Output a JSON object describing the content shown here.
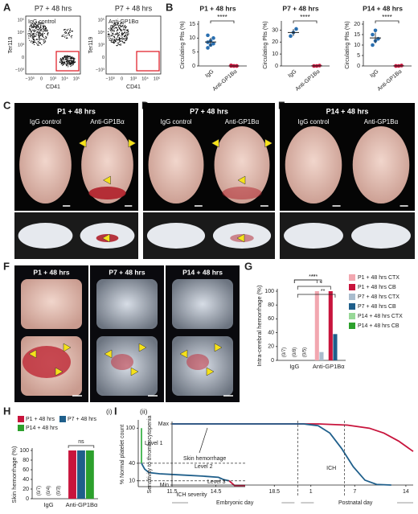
{
  "panel_labels": [
    "A",
    "B",
    "C",
    "D",
    "E",
    "F",
    "G",
    "H",
    "I"
  ],
  "panel_a": {
    "plots": [
      {
        "title": "P7 + 48 hrs",
        "label": "IgG control"
      },
      {
        "title": "P7 + 48 hrs",
        "label": "Anti-GP1Bα"
      }
    ],
    "xlabel": "CD41",
    "ylabel": "Ter119",
    "xticks": [
      "−10³",
      "0",
      "10³",
      "10⁴",
      "10⁵"
    ],
    "yticks": [
      "−10³",
      "0",
      "10³",
      "10⁴",
      "10⁵"
    ]
  },
  "panel_c": {
    "title": "P1 + 48 hrs",
    "labels": [
      "IgG control",
      "Anti-GP1Bα"
    ]
  },
  "panel_d": {
    "title": "P7 + 48 hrs",
    "labels": [
      "IgG control",
      "Anti-GP1Bα"
    ]
  },
  "panel_e": {
    "title": "P14 + 48 hrs",
    "labels": [
      "IgG control",
      "Anti-GP1Bα"
    ]
  },
  "panel_f": {
    "titles": [
      "P1 + 48 hrs",
      "P7 + 48 hrs",
      "P14 + 48 hrs"
    ]
  },
  "chart_data": [
    {
      "type": "dot",
      "title": "P1 + 48 hrs",
      "ylabel": "Circulating Plts (%)",
      "categories": [
        "IgG",
        "Anti-GP1Bα"
      ],
      "colors": [
        "#2a6fb0",
        "#c8143c"
      ],
      "groups": [
        [
          6.5,
          7.5,
          8,
          8.5,
          9,
          10,
          11
        ],
        [
          0,
          0,
          0,
          0.2,
          0,
          0
        ]
      ],
      "means": [
        8.6,
        0
      ],
      "sd": [
        1.5,
        0.1
      ],
      "ylim": [
        0,
        15
      ],
      "yticks": [
        0,
        5,
        10,
        15
      ],
      "significance": "****"
    },
    {
      "type": "dot",
      "title": "P7 + 48 hrs",
      "ylabel": "Circulating Plts (%)",
      "categories": [
        "IgG",
        "Anti-GP1Bα"
      ],
      "colors": [
        "#2a6fb0",
        "#c8143c"
      ],
      "groups": [
        [
          25,
          28,
          31
        ],
        [
          0,
          0,
          0.3
        ]
      ],
      "means": [
        28,
        0.1
      ],
      "sd": [
        3,
        0.2
      ],
      "ylim": [
        0,
        35
      ],
      "yticks": [
        0,
        10,
        20,
        30
      ],
      "significance": "****"
    },
    {
      "type": "dot",
      "title": "P14 + 48 hrs",
      "ylabel": "Circulating Plts (%)",
      "categories": [
        "IgG",
        "Anti-GP1Bα"
      ],
      "colors": [
        "#2a6fb0",
        "#c8143c"
      ],
      "groups": [
        [
          10,
          12,
          13,
          15,
          17
        ],
        [
          0,
          0,
          0.2,
          0
        ]
      ],
      "means": [
        13.4,
        0.05
      ],
      "sd": [
        2.6,
        0.1
      ],
      "ylim": [
        0,
        20
      ],
      "yticks": [
        0,
        5,
        10,
        15,
        20
      ],
      "significance": "****"
    },
    {
      "type": "grouped_bar",
      "ylabel": "Intra-cerebral hemorrhage (%)",
      "categories": [
        "IgG",
        "Anti-GP1Bα"
      ],
      "series": [
        {
          "name": "P1 + 48 hrs CTX",
          "color": "#f2a7b0",
          "values": [
            0,
            100
          ]
        },
        {
          "name": "P1 + 48 hrs CB",
          "color": "#c8143c",
          "values": [
            0,
            100
          ]
        },
        {
          "name": "P7 + 48 hrs CTX",
          "color": "#a9bccd",
          "values": [
            0,
            12
          ]
        },
        {
          "name": "P7 + 48 hrs CB",
          "color": "#1f5f8b",
          "values": [
            0,
            38
          ]
        },
        {
          "name": "P14 + 48 hrs CTX",
          "color": "#98d898",
          "values": [
            0,
            0
          ]
        },
        {
          "name": "P14 + 48 hrs CB",
          "color": "#2ca02c",
          "values": [
            0,
            0
          ]
        }
      ],
      "ylim": [
        0,
        100
      ],
      "yticks": [
        0,
        20,
        40,
        60,
        80,
        100
      ],
      "count_labels": [
        "(0/7)",
        "(0/8)",
        "(0/5)"
      ],
      "significance": [
        "***",
        "*",
        "***",
        "**"
      ]
    },
    {
      "type": "grouped_bar",
      "ylabel": "Skin hemorrhage (%)",
      "categories": [
        "IgG",
        "Anti-GP1Bα"
      ],
      "series": [
        {
          "name": "P1 + 48 hrs",
          "color": "#c8143c",
          "values": [
            0,
            100
          ]
        },
        {
          "name": "P7 + 48 hrs",
          "color": "#1f5f8b",
          "values": [
            0,
            100
          ]
        },
        {
          "name": "P14 + 48 hrs",
          "color": "#2ca02c",
          "values": [
            0,
            100
          ]
        }
      ],
      "ylim": [
        0,
        100
      ],
      "yticks": [
        0,
        20,
        40,
        60,
        80,
        100
      ],
      "count_labels": [
        "(0/7)",
        "(0/4)",
        "(0/3)"
      ],
      "significance": [
        "ns"
      ]
    },
    {
      "type": "line",
      "panel": "(i)",
      "ylabel": "% Normal platelet count",
      "xlabel": "ICH severity",
      "ylim": [
        0,
        110
      ],
      "yticks": [
        10,
        40,
        100
      ],
      "xlim": [
        0,
        10
      ],
      "reference_lines": [
        40,
        10
      ],
      "levels": [
        "Level 1",
        "Level 2",
        "Level 3"
      ],
      "series": [
        {
          "color": "#3cb44b",
          "x": [
            0.3,
            0.3
          ],
          "values": [
            100,
            40
          ]
        },
        {
          "color": "#1f5f8b",
          "x": [
            0.3,
            0.6,
            1,
            2,
            4,
            6,
            7.5,
            8,
            8.5
          ],
          "values": [
            40,
            30,
            24,
            22,
            20,
            18,
            16,
            12,
            10
          ]
        },
        {
          "color": "#c8143c",
          "x": [
            8.5,
            9,
            10
          ],
          "values": [
            10,
            2,
            2
          ]
        }
      ]
    },
    {
      "type": "line",
      "panel": "(ii)",
      "ylabel": "Sensitivity to thrombocytopenia",
      "ylim": [
        0,
        1
      ],
      "yticks": [
        {
          "value": 0,
          "label": "Min"
        },
        {
          "value": 1,
          "label": "Max"
        }
      ],
      "xlim": [
        0,
        16.5
      ],
      "xticks": [
        {
          "value": 0,
          "label": "11.5"
        },
        {
          "value": 3,
          "label": "14.5"
        },
        {
          "value": 7,
          "label": "18.5"
        },
        {
          "value": 9.5,
          "label": "1"
        },
        {
          "value": 12.5,
          "label": "7"
        },
        {
          "value": 16,
          "label": "14"
        }
      ],
      "x_groups": [
        "Embryonic day",
        "Postnatal day"
      ],
      "reference_lines": [
        8.6,
        11.8
      ],
      "annotations": [
        "Skin hemorrhage",
        "ICH"
      ],
      "series": [
        {
          "color": "#c8143c",
          "x": [
            0,
            6,
            10,
            12,
            13.5,
            14.5,
            15.5,
            16.5
          ],
          "values": [
            1,
            1,
            1,
            0.98,
            0.93,
            0.85,
            0.72,
            0.55
          ]
        },
        {
          "color": "#1f5f8b",
          "x": [
            0,
            6,
            9,
            10,
            10.8,
            11.6,
            12.4,
            13.2,
            14,
            15
          ],
          "values": [
            1,
            1,
            1,
            0.97,
            0.85,
            0.6,
            0.3,
            0.08,
            0.01,
            0
          ]
        }
      ]
    }
  ]
}
